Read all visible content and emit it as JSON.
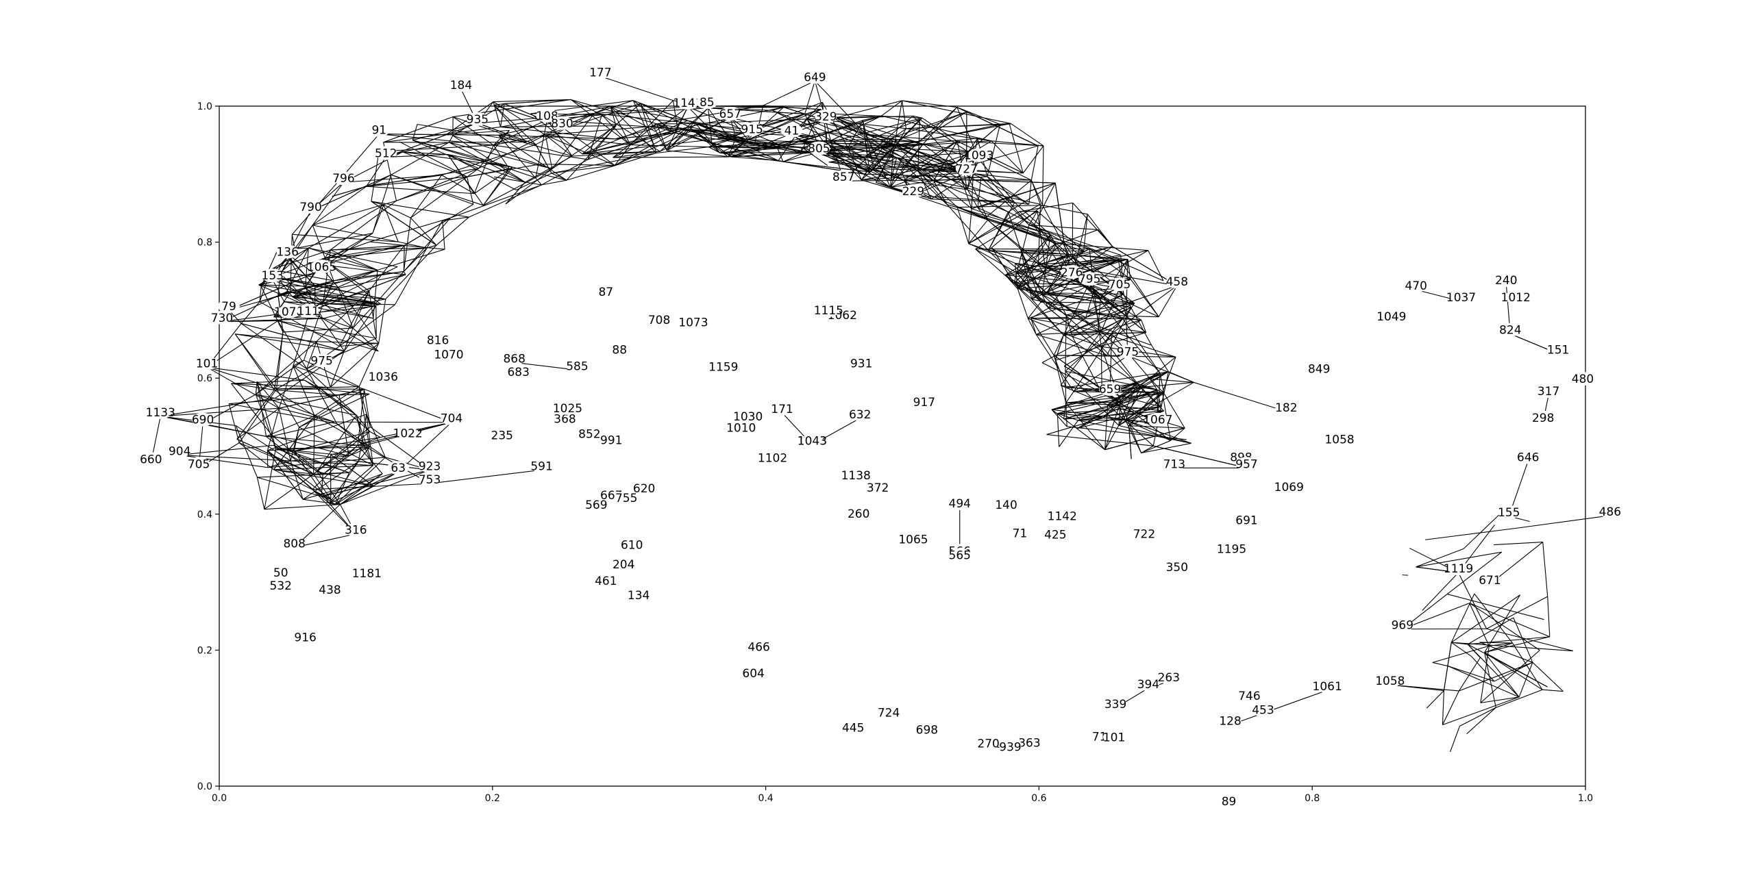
{
  "diagram": {
    "type": "network-graph",
    "x_axis": {
      "range": [
        0.0,
        1.0
      ],
      "ticks": [
        "0.0",
        "0.2",
        "0.4",
        "0.6",
        "0.8",
        "1.0"
      ]
    },
    "y_axis": {
      "range": [
        0.0,
        1.0
      ],
      "ticks": [
        "0.0",
        "0.2",
        "0.4",
        "0.6",
        "0.8",
        "1.0"
      ]
    },
    "colors": {
      "edge": "#000000",
      "node_fill": "#ffffff",
      "label": "#000000",
      "frame": "#000000"
    },
    "nodes": [
      {
        "id": "177",
        "x": 0.279,
        "y": 1.044
      },
      {
        "id": "649",
        "x": 0.436,
        "y": 1.037
      },
      {
        "id": "184",
        "x": 0.177,
        "y": 1.025
      },
      {
        "id": "935",
        "x": 0.189,
        "y": 0.975
      },
      {
        "id": "108",
        "x": 0.24,
        "y": 0.98
      },
      {
        "id": "830",
        "x": 0.251,
        "y": 0.969
      },
      {
        "id": "329",
        "x": 0.444,
        "y": 0.979
      },
      {
        "id": "657",
        "x": 0.374,
        "y": 0.983
      },
      {
        "id": "1141",
        "x": 0.343,
        "y": 0.999
      },
      {
        "id": "85",
        "x": 0.357,
        "y": 1.0
      },
      {
        "id": "91",
        "x": 0.117,
        "y": 0.959
      },
      {
        "id": "512",
        "x": 0.122,
        "y": 0.925
      },
      {
        "id": "796",
        "x": 0.091,
        "y": 0.888
      },
      {
        "id": "790",
        "x": 0.067,
        "y": 0.846
      },
      {
        "id": "41",
        "x": 0.419,
        "y": 0.958
      },
      {
        "id": "915",
        "x": 0.39,
        "y": 0.96
      },
      {
        "id": "805",
        "x": 0.439,
        "y": 0.932
      },
      {
        "id": "857",
        "x": 0.457,
        "y": 0.89
      },
      {
        "id": "1093",
        "x": 0.556,
        "y": 0.922
      },
      {
        "id": "727",
        "x": 0.547,
        "y": 0.902
      },
      {
        "id": "229",
        "x": 0.508,
        "y": 0.869
      },
      {
        "id": "136",
        "x": 0.05,
        "y": 0.78
      },
      {
        "id": "153",
        "x": 0.039,
        "y": 0.745
      },
      {
        "id": "79",
        "x": 0.007,
        "y": 0.7
      },
      {
        "id": "730",
        "x": 0.002,
        "y": 0.683
      },
      {
        "id": "101",
        "x": -0.009,
        "y": 0.616
      },
      {
        "id": "705",
        "x": 0.659,
        "y": 0.732
      },
      {
        "id": "458",
        "x": 0.701,
        "y": 0.736
      },
      {
        "id": "276",
        "x": 0.624,
        "y": 0.75
      },
      {
        "id": "795",
        "x": 0.637,
        "y": 0.74
      },
      {
        "id": "975",
        "x": 0.665,
        "y": 0.633
      },
      {
        "id": "240",
        "x": 0.942,
        "y": 0.738
      },
      {
        "id": "470",
        "x": 0.876,
        "y": 0.73
      },
      {
        "id": "1037",
        "x": 0.909,
        "y": 0.713
      },
      {
        "id": "1012",
        "x": 0.949,
        "y": 0.713
      },
      {
        "id": "1049",
        "x": 0.858,
        "y": 0.685
      },
      {
        "id": "824",
        "x": 0.945,
        "y": 0.665
      },
      {
        "id": "151",
        "x": 0.98,
        "y": 0.636
      },
      {
        "id": "480",
        "x": 0.998,
        "y": 0.593
      },
      {
        "id": "317",
        "x": 0.973,
        "y": 0.575
      },
      {
        "id": "298",
        "x": 0.969,
        "y": 0.536
      },
      {
        "id": "646",
        "x": 0.958,
        "y": 0.478
      },
      {
        "id": "486",
        "x": 1.018,
        "y": 0.398
      },
      {
        "id": "155",
        "x": 0.944,
        "y": 0.397
      },
      {
        "id": "671",
        "x": 0.93,
        "y": 0.297
      },
      {
        "id": "1119",
        "x": 0.907,
        "y": 0.314
      },
      {
        "id": "969",
        "x": 0.866,
        "y": 0.231
      },
      {
        "id": "1058",
        "x": 0.857,
        "y": 0.149
      },
      {
        "id": "1061",
        "x": 0.811,
        "y": 0.141
      },
      {
        "id": "453",
        "x": 0.764,
        "y": 0.106
      },
      {
        "id": "128",
        "x": 0.74,
        "y": 0.09
      },
      {
        "id": "89",
        "x": 0.739,
        "y": -0.028
      },
      {
        "id": "746",
        "x": 0.754,
        "y": 0.127
      },
      {
        "id": "849",
        "x": 0.805,
        "y": 0.608
      },
      {
        "id": "182",
        "x": 0.781,
        "y": 0.551
      },
      {
        "id": "898",
        "x": 0.748,
        "y": 0.478
      },
      {
        "id": "957",
        "x": 0.752,
        "y": 0.468
      },
      {
        "id": "713",
        "x": 0.699,
        "y": 0.468
      },
      {
        "id": "1067",
        "x": 0.687,
        "y": 0.533
      },
      {
        "id": "659",
        "x": 0.652,
        "y": 0.578
      },
      {
        "id": "1133",
        "x": -0.043,
        "y": 0.544
      },
      {
        "id": "690",
        "x": -0.012,
        "y": 0.533
      },
      {
        "id": "660",
        "x": -0.05,
        "y": 0.475
      },
      {
        "id": "904",
        "x": -0.029,
        "y": 0.487
      },
      {
        "id": "705b",
        "x": -0.015,
        "y": 0.468
      },
      {
        "id": "1181",
        "x": 0.108,
        "y": 0.307
      },
      {
        "id": "438",
        "x": 0.081,
        "y": 0.283
      },
      {
        "id": "916",
        "x": 0.063,
        "y": 0.213
      },
      {
        "id": "532",
        "x": 0.045,
        "y": 0.289
      },
      {
        "id": "50",
        "x": 0.045,
        "y": 0.308
      },
      {
        "id": "808",
        "x": 0.055,
        "y": 0.351
      },
      {
        "id": "316",
        "x": 0.1,
        "y": 0.371
      },
      {
        "id": "704",
        "x": 0.17,
        "y": 0.535
      },
      {
        "id": "235",
        "x": 0.207,
        "y": 0.51
      },
      {
        "id": "591",
        "x": 0.236,
        "y": 0.465
      },
      {
        "id": "753",
        "x": 0.154,
        "y": 0.445
      },
      {
        "id": "923",
        "x": 0.154,
        "y": 0.465
      },
      {
        "id": "63",
        "x": 0.131,
        "y": 0.462
      },
      {
        "id": "683",
        "x": 0.219,
        "y": 0.603
      },
      {
        "id": "868",
        "x": 0.216,
        "y": 0.623
      },
      {
        "id": "585",
        "x": 0.262,
        "y": 0.612
      },
      {
        "id": "88",
        "x": 0.293,
        "y": 0.636
      },
      {
        "id": "708",
        "x": 0.322,
        "y": 0.68
      },
      {
        "id": "87",
        "x": 0.283,
        "y": 0.721
      },
      {
        "id": "632",
        "x": 0.469,
        "y": 0.541
      },
      {
        "id": "931",
        "x": 0.47,
        "y": 0.616
      },
      {
        "id": "1138",
        "x": 0.466,
        "y": 0.451
      },
      {
        "id": "494",
        "x": 0.542,
        "y": 0.41
      },
      {
        "id": "140",
        "x": 0.576,
        "y": 0.408
      },
      {
        "id": "71",
        "x": 0.586,
        "y": 0.366
      },
      {
        "id": "1043",
        "x": 0.434,
        "y": 0.502
      },
      {
        "id": "171",
        "x": 0.412,
        "y": 0.549
      },
      {
        "id": "569",
        "x": 0.276,
        "y": 0.408
      },
      {
        "id": "461",
        "x": 0.283,
        "y": 0.296
      },
      {
        "id": "134",
        "x": 0.307,
        "y": 0.275
      },
      {
        "id": "604",
        "x": 0.391,
        "y": 0.16
      },
      {
        "id": "466",
        "x": 0.395,
        "y": 0.199
      },
      {
        "id": "445",
        "x": 0.464,
        "y": 0.08
      },
      {
        "id": "724",
        "x": 0.49,
        "y": 0.102
      },
      {
        "id": "698",
        "x": 0.518,
        "y": 0.077
      },
      {
        "id": "270",
        "x": 0.563,
        "y": 0.057
      },
      {
        "id": "363",
        "x": 0.593,
        "y": 0.058
      },
      {
        "id": "939",
        "x": 0.579,
        "y": 0.052
      },
      {
        "id": "715",
        "x": 0.647,
        "y": 0.067
      },
      {
        "id": "101b",
        "x": 0.655,
        "y": 0.066
      },
      {
        "id": "339",
        "x": 0.656,
        "y": 0.115
      },
      {
        "id": "394",
        "x": 0.68,
        "y": 0.144
      },
      {
        "id": "263",
        "x": 0.695,
        "y": 0.154
      },
      {
        "id": "1043b",
        "x": 0.434,
        "y": 0.502
      },
      {
        "id": "917",
        "x": 0.516,
        "y": 0.559
      },
      {
        "id": "566",
        "x": 0.542,
        "y": 0.34
      }
    ],
    "labels": [
      {
        "id": "1065",
        "x": 0.075,
        "y": 0.758
      },
      {
        "id": "1078",
        "x": 0.051,
        "y": 0.692
      },
      {
        "id": "111",
        "x": 0.065,
        "y": 0.693
      },
      {
        "id": "975",
        "x": 0.075,
        "y": 0.62
      },
      {
        "id": "1036",
        "x": 0.12,
        "y": 0.596
      },
      {
        "id": "1022",
        "x": 0.138,
        "y": 0.513
      },
      {
        "id": "816",
        "x": 0.16,
        "y": 0.65
      },
      {
        "id": "1070",
        "x": 0.168,
        "y": 0.629
      },
      {
        "id": "368",
        "x": 0.253,
        "y": 0.534
      },
      {
        "id": "1025",
        "x": 0.255,
        "y": 0.55
      },
      {
        "id": "852",
        "x": 0.271,
        "y": 0.512
      },
      {
        "id": "991",
        "x": 0.287,
        "y": 0.503
      },
      {
        "id": "667",
        "x": 0.287,
        "y": 0.422
      },
      {
        "id": "755",
        "x": 0.298,
        "y": 0.418
      },
      {
        "id": "620",
        "x": 0.311,
        "y": 0.432
      },
      {
        "id": "610",
        "x": 0.302,
        "y": 0.349
      },
      {
        "id": "204",
        "x": 0.296,
        "y": 0.32
      },
      {
        "id": "372",
        "x": 0.482,
        "y": 0.433
      },
      {
        "id": "260",
        "x": 0.468,
        "y": 0.395
      },
      {
        "id": "1065b",
        "x": 0.508,
        "y": 0.357
      },
      {
        "id": "565",
        "x": 0.542,
        "y": 0.334
      },
      {
        "id": "1142",
        "x": 0.617,
        "y": 0.391
      },
      {
        "id": "425",
        "x": 0.612,
        "y": 0.364
      },
      {
        "id": "722",
        "x": 0.677,
        "y": 0.365
      },
      {
        "id": "350",
        "x": 0.701,
        "y": 0.316
      },
      {
        "id": "1195",
        "x": 0.741,
        "y": 0.343
      },
      {
        "id": "691",
        "x": 0.752,
        "y": 0.385
      },
      {
        "id": "1069",
        "x": 0.783,
        "y": 0.434
      },
      {
        "id": "1058b",
        "x": 0.82,
        "y": 0.504
      },
      {
        "id": "1062",
        "x": 0.456,
        "y": 0.687
      },
      {
        "id": "1115",
        "x": 0.446,
        "y": 0.694
      },
      {
        "id": "1159",
        "x": 0.369,
        "y": 0.611
      },
      {
        "id": "1073",
        "x": 0.347,
        "y": 0.676
      },
      {
        "id": "1030",
        "x": 0.387,
        "y": 0.538
      },
      {
        "id": "1010",
        "x": 0.382,
        "y": 0.521
      },
      {
        "id": "1102",
        "x": 0.405,
        "y": 0.477
      }
    ],
    "edge_seed": 7
  }
}
